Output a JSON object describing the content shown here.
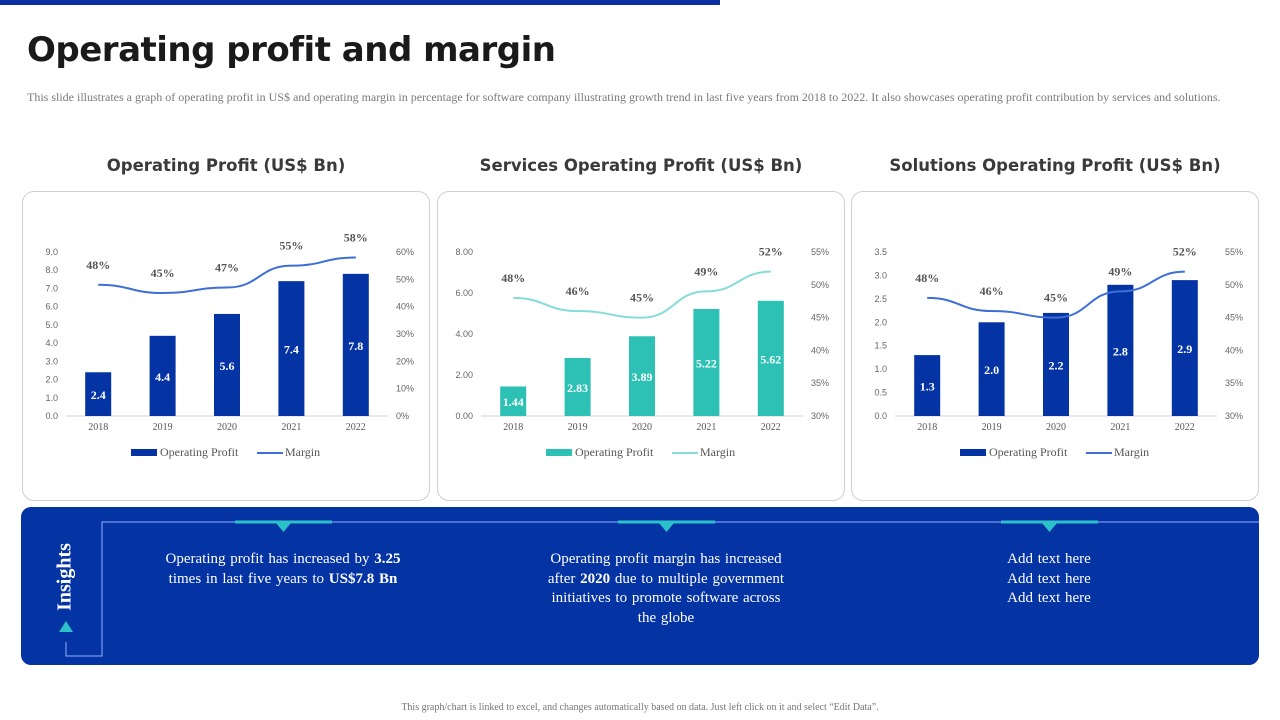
{
  "page": {
    "title": "Operating profit and margin",
    "subtitle": "This slide illustrates a graph of operating profit in US$ and operating margin  in percentage  for software company illustrating growth trend in last five  years from 2018 to 2022. It also showcases operating profit contribution by services and solutions.",
    "footer_note": "This graph/chart is linked to excel, and changes automatically based on data. Just left click on it and select “Edit Data”."
  },
  "colors": {
    "brand_blue": "#0433a4",
    "bar_blue": "#0433a4",
    "line_blue": "#3d6fd6",
    "bar_teal": "#2cc1b4",
    "line_teal": "#86dcd9",
    "accent_teal": "#2cc1c8"
  },
  "chart_data": [
    {
      "type": "bar",
      "title": "Operating Profit (US$ Bn)",
      "categories": [
        "2018",
        "2019",
        "2020",
        "2021",
        "2022"
      ],
      "series": [
        {
          "name": "Operating Profit",
          "kind": "bar",
          "axis": "left",
          "values": [
            2.4,
            4.4,
            5.6,
            7.4,
            7.8
          ],
          "labels": [
            "2.4",
            "4.4",
            "5.6",
            "7.4",
            "7.8"
          ],
          "color": "#0433a4"
        },
        {
          "name": "Margin",
          "kind": "line",
          "axis": "right",
          "values": [
            48,
            45,
            47,
            55,
            58
          ],
          "labels": [
            "48%",
            "45%",
            "47%",
            "55%",
            "58%"
          ],
          "color": "#3d6fd6"
        }
      ],
      "ylim": [
        0,
        9
      ],
      "yticks": [
        "0.0",
        "1.0",
        "2.0",
        "3.0",
        "4.0",
        "5.0",
        "6.0",
        "7.0",
        "8.0",
        "9.0"
      ],
      "y2lim": [
        0,
        60
      ],
      "y2ticks": [
        "0%",
        "10%",
        "20%",
        "30%",
        "40%",
        "50%",
        "60%"
      ],
      "legend": "bottom",
      "grid": false
    },
    {
      "type": "bar",
      "title": "Services Operating Profit (US$ Bn)",
      "categories": [
        "2018",
        "2019",
        "2020",
        "2021",
        "2022"
      ],
      "series": [
        {
          "name": "Operating Profit",
          "kind": "bar",
          "axis": "left",
          "values": [
            1.44,
            2.83,
            3.89,
            5.22,
            5.62
          ],
          "labels": [
            "1.44",
            "2.83",
            "3.89",
            "5.22",
            "5.62"
          ],
          "color": "#2cc1b4"
        },
        {
          "name": "Margin",
          "kind": "line",
          "axis": "right",
          "values": [
            48,
            46,
            45,
            49,
            52
          ],
          "labels": [
            "48%",
            "46%",
            "45%",
            "49%",
            "52%"
          ],
          "color": "#86dcd9"
        }
      ],
      "ylim": [
        0,
        8
      ],
      "yticks": [
        "0.00",
        "2.00",
        "4.00",
        "6.00",
        "8.00"
      ],
      "y2lim": [
        30,
        55
      ],
      "y2ticks": [
        "30%",
        "35%",
        "40%",
        "45%",
        "50%",
        "55%"
      ],
      "legend": "bottom",
      "grid": false
    },
    {
      "type": "bar",
      "title": "Solutions Operating Profit (US$ Bn)",
      "categories": [
        "2018",
        "2019",
        "2020",
        "2021",
        "2022"
      ],
      "series": [
        {
          "name": "Operating Profit",
          "kind": "bar",
          "axis": "left",
          "values": [
            1.3,
            2.0,
            2.2,
            2.8,
            2.9
          ],
          "labels": [
            "1.3",
            "2.0",
            "2.2",
            "2.8",
            "2.9"
          ],
          "color": "#0433a4"
        },
        {
          "name": "Margin",
          "kind": "line",
          "axis": "right",
          "values": [
            48,
            46,
            45,
            49,
            52
          ],
          "labels": [
            "48%",
            "46%",
            "45%",
            "49%",
            "52%"
          ],
          "color": "#3d6fd6"
        }
      ],
      "ylim": [
        0,
        3.5
      ],
      "yticks": [
        "0.0",
        "0.5",
        "1.0",
        "1.5",
        "2.0",
        "2.5",
        "3.0",
        "3.5"
      ],
      "y2lim": [
        30,
        55
      ],
      "y2ticks": [
        "30%",
        "35%",
        "40%",
        "45%",
        "50%",
        "55%"
      ],
      "legend": "bottom",
      "grid": false
    }
  ],
  "insights": {
    "label": "Insights",
    "items": [
      {
        "parts": [
          {
            "text": "Operating  profit  has increased by ",
            "bold": false
          },
          {
            "text": "3.25",
            "bold": true
          },
          {
            "text": " times  in last five  years to ",
            "bold": false
          },
          {
            "text": "US$7.8  Bn",
            "bold": true
          }
        ]
      },
      {
        "parts": [
          {
            "text": "Operating  profit  margin  has increased  after ",
            "bold": false
          },
          {
            "text": "2020",
            "bold": true
          },
          {
            "text": " due to multiple  government  initiatives  to promote  software  across the globe",
            "bold": false
          }
        ]
      },
      {
        "parts": [
          {
            "text": "Add text  here\nAdd text  here\nAdd text  here",
            "bold": false
          }
        ]
      }
    ]
  }
}
